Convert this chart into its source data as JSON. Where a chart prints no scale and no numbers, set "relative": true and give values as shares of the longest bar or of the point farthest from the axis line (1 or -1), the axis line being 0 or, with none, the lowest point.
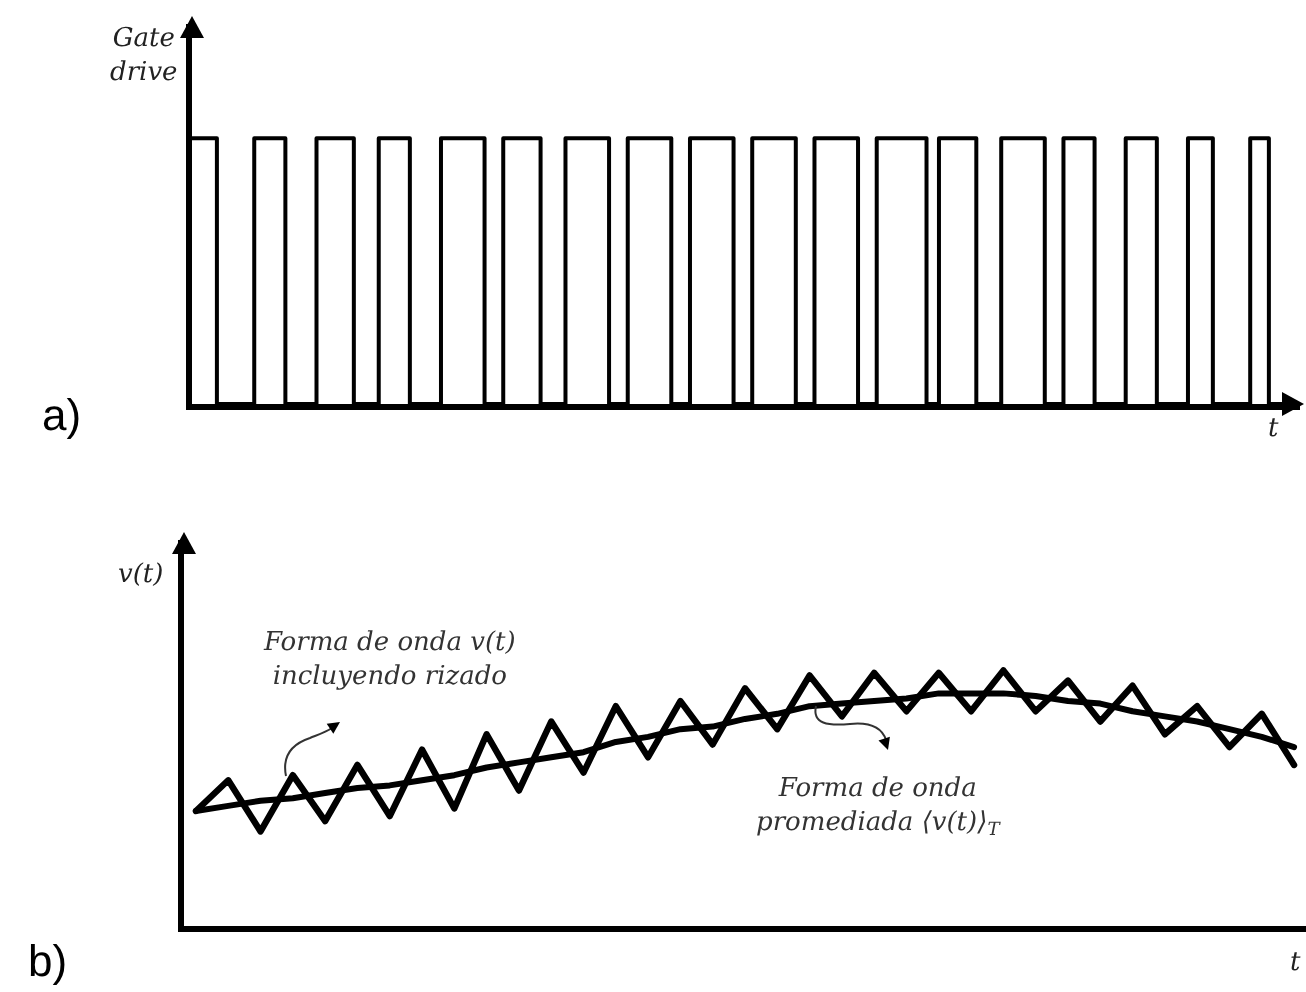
{
  "chart_data": [
    {
      "type": "step",
      "title": "a)",
      "ylabel": "Gate\ndrive",
      "xlabel": "t",
      "relative": true,
      "tick_labels": false,
      "color": "#000000",
      "categories": [
        null,
        null,
        null,
        null,
        null,
        null,
        null,
        null,
        null,
        null,
        null,
        null,
        null,
        null,
        null,
        null,
        null,
        null,
        null,
        null,
        null,
        null,
        null,
        null,
        null,
        null,
        null,
        null,
        null,
        null,
        null,
        null,
        null,
        null,
        null,
        null,
        null,
        null,
        null,
        null,
        null,
        null,
        null,
        null,
        null,
        null,
        null,
        null,
        null,
        null,
        null,
        null,
        null,
        null,
        null,
        null,
        null,
        null,
        null,
        null,
        null,
        null,
        null,
        null,
        null,
        null,
        null,
        null,
        null,
        null,
        null,
        null,
        null,
        null,
        null,
        null,
        null,
        null,
        null,
        null,
        null,
        null,
        null,
        null,
        null,
        null,
        null,
        null,
        null,
        null,
        null,
        null,
        null,
        null,
        null,
        null,
        null,
        null,
        null,
        null,
        null,
        null,
        null,
        null,
        null,
        null,
        null,
        null,
        null,
        null,
        null,
        null,
        null,
        null,
        null,
        null,
        null,
        null,
        null,
        null,
        null,
        null,
        null,
        null,
        null,
        null,
        null,
        null,
        null,
        null,
        null,
        null,
        null,
        null,
        null,
        null,
        null,
        null,
        null,
        null,
        null,
        null,
        null,
        null,
        null,
        null,
        null,
        null,
        null,
        null,
        null,
        null,
        null,
        null,
        null,
        null,
        null,
        null,
        null,
        null,
        null,
        null,
        null,
        null,
        null,
        null,
        null,
        null,
        null,
        null,
        null,
        null,
        null,
        null,
        null,
        null,
        null,
        null,
        null
      ],
      "values": [
        1,
        1,
        1,
        1,
        0,
        0,
        0,
        0,
        0,
        0,
        1,
        1,
        1,
        1,
        1,
        0,
        0,
        0,
        0,
        0,
        1,
        1,
        1,
        1,
        1,
        1,
        0,
        0,
        0,
        0,
        1,
        1,
        1,
        1,
        1,
        0,
        0,
        0,
        0,
        0,
        1,
        1,
        1,
        1,
        1,
        1,
        1,
        0,
        0,
        0,
        1,
        1,
        1,
        1,
        1,
        1,
        0,
        0,
        0,
        0,
        1,
        1,
        1,
        1,
        1,
        1,
        1,
        0,
        0,
        0,
        1,
        1,
        1,
        1,
        1,
        1,
        1,
        0,
        0,
        0,
        1,
        1,
        1,
        1,
        1,
        1,
        1,
        0,
        0,
        0,
        1,
        1,
        1,
        1,
        1,
        1,
        1,
        0,
        0,
        0,
        1,
        1,
        1,
        1,
        1,
        1,
        1,
        0,
        0,
        0,
        1,
        1,
        1,
        1,
        1,
        1,
        1,
        1,
        0,
        0,
        1,
        1,
        1,
        1,
        1,
        1,
        0,
        0,
        0,
        0,
        1,
        1,
        1,
        1,
        1,
        1,
        1,
        0,
        0,
        0,
        1,
        1,
        1,
        1,
        1,
        0,
        0,
        0,
        0,
        0,
        1,
        1,
        1,
        1,
        1,
        0,
        0,
        0,
        0,
        0,
        1,
        1,
        1,
        1,
        0,
        0,
        0,
        0,
        0,
        0,
        1,
        1,
        1,
        0,
        0,
        0,
        0,
        0,
        0
      ]
    },
    {
      "type": "line",
      "title": "b)",
      "ylabel": "v(t)",
      "xlabel": "t",
      "relative": true,
      "tick_labels": false,
      "categories": [
        null,
        null,
        null,
        null,
        null,
        null,
        null,
        null,
        null,
        null,
        null,
        null,
        null,
        null,
        null,
        null,
        null,
        null,
        null,
        null,
        null,
        null,
        null,
        null,
        null,
        null,
        null,
        null,
        null,
        null,
        null,
        null,
        null,
        null,
        null
      ],
      "series": [
        {
          "color": "#000000",
          "values": [
            0.45,
            0.57,
            0.37,
            0.59,
            0.41,
            0.63,
            0.43,
            0.69,
            0.46,
            0.75,
            0.53,
            0.8,
            0.6,
            0.86,
            0.66,
            0.88,
            0.71,
            0.93,
            0.77,
            0.98,
            0.82,
            0.99,
            0.84,
            0.99,
            0.84,
            1.0,
            0.84,
            0.96,
            0.8,
            0.94,
            0.75,
            0.86,
            0.7,
            0.83,
            0.63
          ]
        },
        {
          "color": "#000000",
          "values": [
            0.45,
            0.47,
            0.49,
            0.5,
            0.52,
            0.54,
            0.55,
            0.57,
            0.59,
            0.62,
            0.64,
            0.66,
            0.68,
            0.72,
            0.74,
            0.77,
            0.78,
            0.81,
            0.83,
            0.86,
            0.87,
            0.88,
            0.89,
            0.91,
            0.91,
            0.91,
            0.9,
            0.88,
            0.87,
            0.84,
            0.82,
            0.8,
            0.77,
            0.74,
            0.7
          ]
        }
      ],
      "annotations": [
        "Forma de onda v(t)\nincluyendo rizado",
        "Forma de onda\npromediada ⟨v(t)⟩$_{T}$"
      ]
    }
  ]
}
